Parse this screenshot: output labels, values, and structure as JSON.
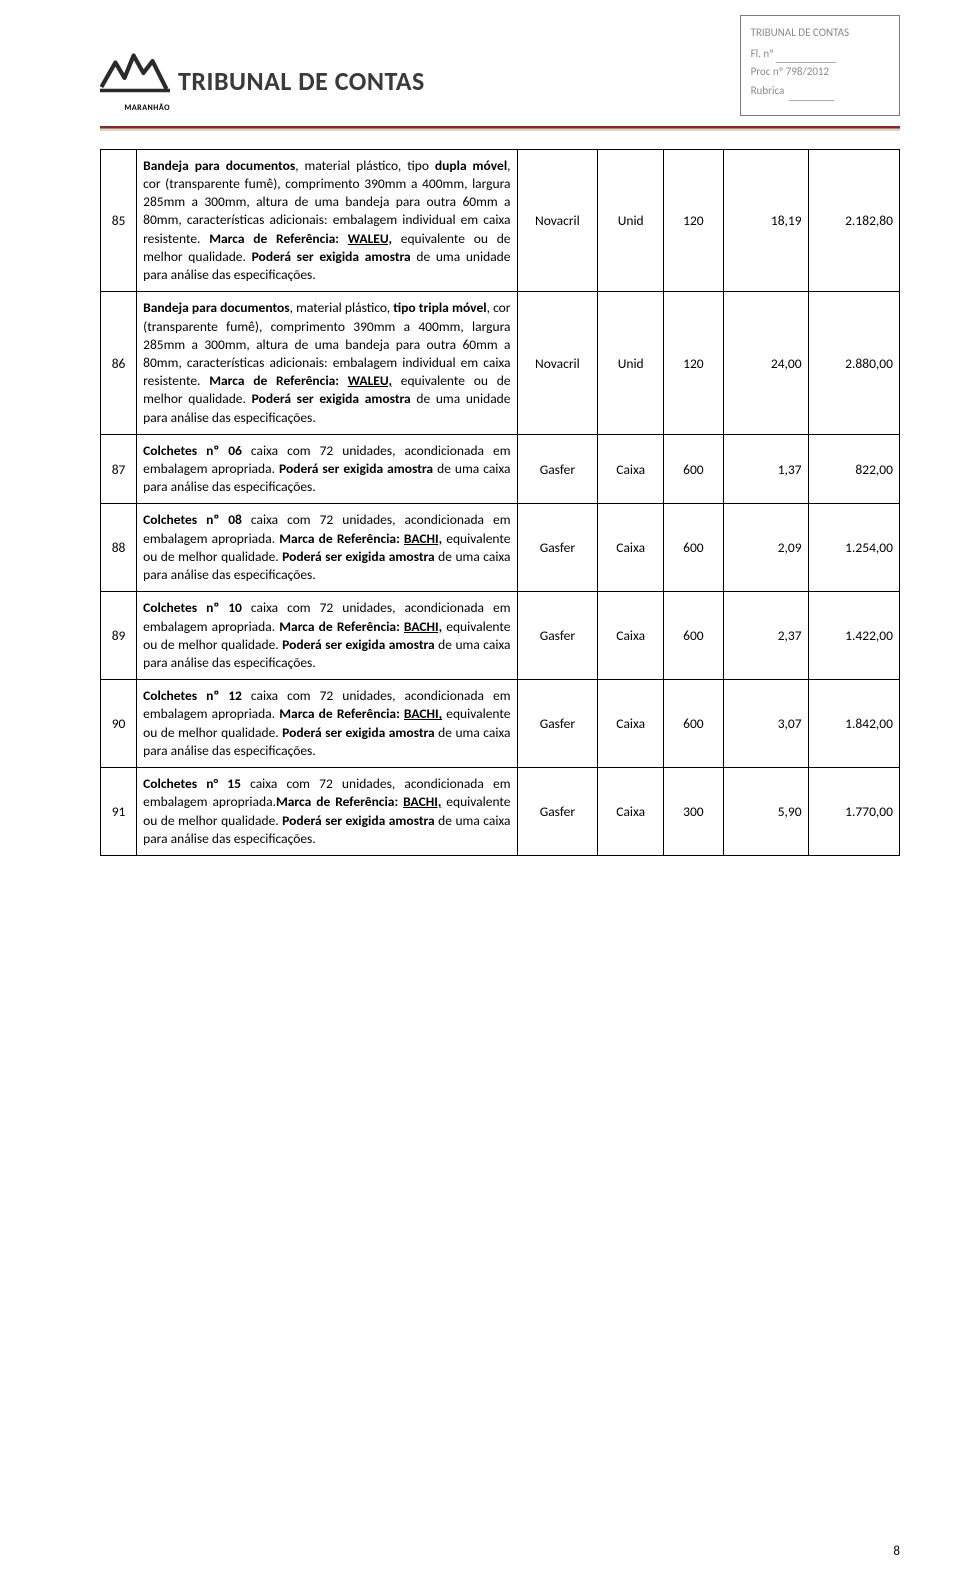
{
  "stamp": {
    "title": "TRIBUNAL DE CONTAS",
    "fl": "Fl. nº",
    "proc": "Proc nº 798/2012",
    "rubrica": "Rubrica"
  },
  "logo": {
    "state": "MARANHÃO",
    "title": "TRIBUNAL DE CONTAS"
  },
  "rows": [
    {
      "idx": "85",
      "desc": "<b>Bandeja para documentos</b>, material plástico, tipo <b>dupla móvel</b>, cor (transparente fumê), comprimento 390mm a 400mm, largura 285mm a 300mm, altura de uma bandeja para outra 60mm a 80mm, características adicionais: embalagem individual em caixa resistente. <b>Marca de Referência: <span class=\"u\">WALEU,</span></b> equivalente ou de melhor qualidade. <b>Poderá ser exigida amostra</b> de uma unidade para análise das especificações.",
      "brand": "Novacril",
      "unit": "Unid",
      "qty": "120",
      "unitprice": "18,19",
      "total": "2.182,80"
    },
    {
      "idx": "86",
      "desc": "<b>Bandeja para documentos</b>, material plástico, <b>tipo tripla móvel</b>, cor (transparente fumê), comprimento 390mm a 400mm, largura 285mm a 300mm, altura de uma bandeja para outra 60mm a 80mm, características adicionais: embalagem individual em caixa resistente. <b>Marca de Referência: <span class=\"u\">WALEU,</span></b> equivalente ou de melhor qualidade. <b>Poderá ser exigida amostra</b> de uma unidade para análise das especificações.",
      "brand": "Novacril",
      "unit": "Unid",
      "qty": "120",
      "unitprice": "24,00",
      "total": "2.880,00"
    },
    {
      "idx": "87",
      "desc": "<b>Colchetes nº 06</b> caixa com 72 unidades, acondicionada em embalagem apropriada. <b>Poderá ser exigida amostra</b> de uma caixa para análise das especificações.",
      "brand": "Gasfer",
      "unit": "Caixa",
      "qty": "600",
      "unitprice": "1,37",
      "total": "822,00"
    },
    {
      "idx": "88",
      "desc": "<b>Colchetes nº 08</b> caixa com 72 unidades, acondicionada em embalagem apropriada. <b>Marca de Referência: <span class=\"u\">BACHI,</span></b> equivalente ou de melhor qualidade. <b>Poderá ser exigida amostra</b> de uma caixa para análise das especificações.",
      "brand": "Gasfer",
      "unit": "Caixa",
      "qty": "600",
      "unitprice": "2,09",
      "total": "1.254,00"
    },
    {
      "idx": "89",
      "desc": "<b>Colchetes nº 10</b> caixa com 72 unidades, acondicionada em embalagem apropriada. <b>Marca de Referência: <span class=\"u\">BACHI,</span></b> equivalente ou de melhor qualidade. <b>Poderá ser exigida amostra</b> de uma caixa para análise das especificações.",
      "brand": "Gasfer",
      "unit": "Caixa",
      "qty": "600",
      "unitprice": "2,37",
      "total": "1.422,00"
    },
    {
      "idx": "90",
      "desc": "<b>Colchetes nº 12</b> caixa com 72 unidades, acondicionada em embalagem apropriada. <b>Marca de Referência: <span class=\"u\">BACHI,</span></b> equivalente ou de melhor qualidade. <b>Poderá ser exigida amostra</b> de uma caixa para análise das especificações.",
      "brand": "Gasfer",
      "unit": "Caixa",
      "qty": "600",
      "unitprice": "3,07",
      "total": "1.842,00"
    },
    {
      "idx": "91",
      "desc": "<b>Colchetes n° 15</b> caixa com 72 unidades, acondicionada em embalagem apropriada.<b>Marca de Referência: <span class=\"u\">BACHI,</span></b> equivalente ou de melhor qualidade. <b>Poderá ser exigida amostra</b> de uma caixa para análise das especificações.",
      "brand": "Gasfer",
      "unit": "Caixa",
      "qty": "300",
      "unitprice": "5,90",
      "total": "1.770,00"
    }
  ],
  "pagenum": "8",
  "style": {
    "accent_bar_top": "#7c2a2a",
    "accent_bar_bottom": "#e2d5c3",
    "border_color": "#000000",
    "stamp_border": "#7a7a7a",
    "stamp_text": "#8a8a8a",
    "font_size_body": 13.5
  }
}
